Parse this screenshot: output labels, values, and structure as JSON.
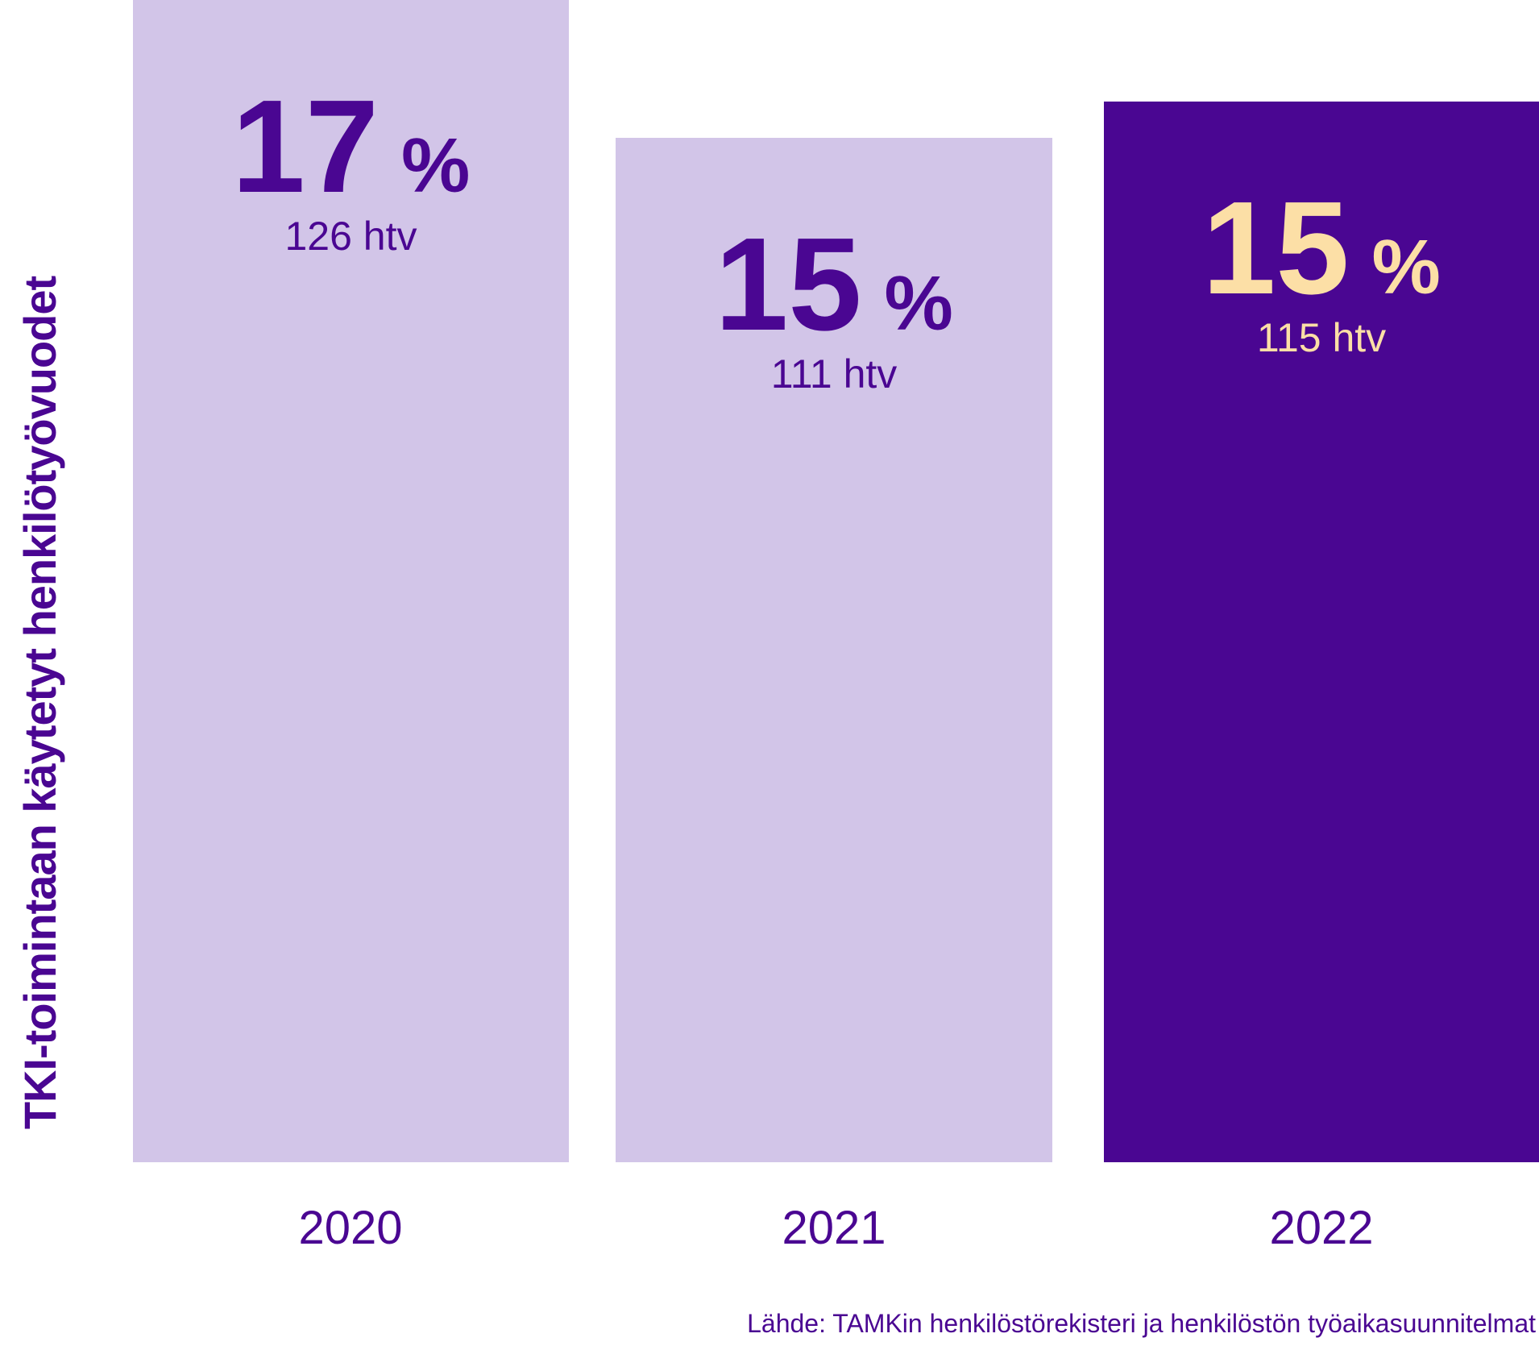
{
  "chart_data": {
    "type": "bar",
    "title": "",
    "ylabel": "TKI-toimintaan käytetyt henkilötyövuodet",
    "xlabel": "",
    "categories": [
      "2020",
      "2021",
      "2022"
    ],
    "series": [
      {
        "name": "%",
        "values": [
          17,
          15,
          15
        ]
      },
      {
        "name": "htv",
        "values": [
          126,
          111,
          115
        ]
      }
    ],
    "grid": false,
    "legend": false,
    "highlighted_category": "2022",
    "source": "Lähde: TAMKin henkilöstörekisteri ja henkilöstön työaikasuunnitelmat"
  },
  "bars": [
    {
      "year": "2020",
      "pct": "17",
      "pct_unit": "%",
      "htv": "126 htv"
    },
    {
      "year": "2021",
      "pct": "15",
      "pct_unit": "%",
      "htv": "111 htv"
    },
    {
      "year": "2022",
      "pct": "15",
      "pct_unit": "%",
      "htv": "115 htv"
    }
  ],
  "source_text": "Lähde: TAMKin henkilöstörekisteri ja henkilöstön työaikasuunnitelmat",
  "colors": {
    "purple": "#4a0692",
    "lavender": "#d2c5e8",
    "cream": "#fcdfa6",
    "background": "#ffffff"
  }
}
